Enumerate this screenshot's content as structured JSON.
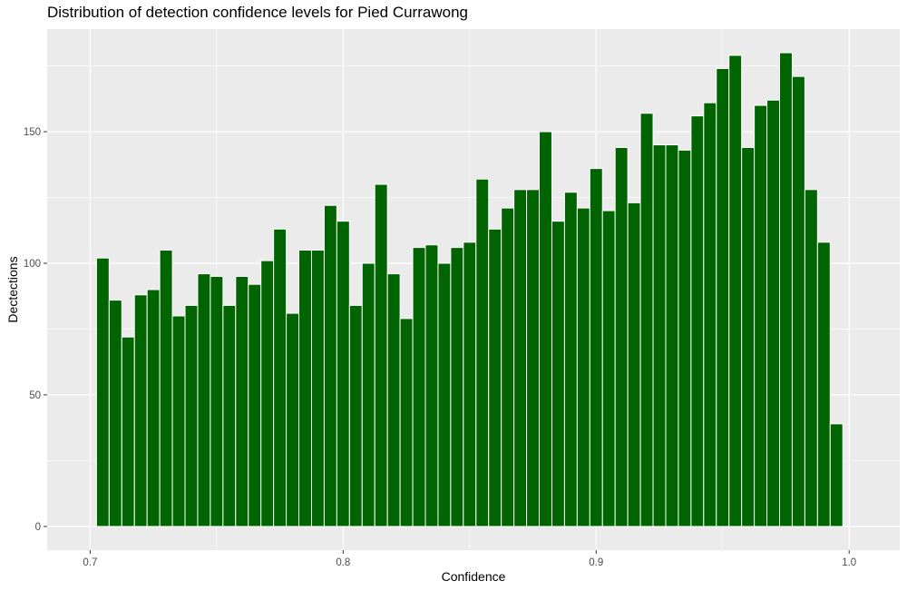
{
  "chart_data": {
    "type": "bar",
    "title": "Distribution of detection confidence levels for Pied Currawong",
    "xlabel": "Confidence",
    "ylabel": "Dectections",
    "xlim": [
      0.683,
      1.02
    ],
    "ylim": [
      -9,
      189
    ],
    "x_ticks": [
      0.7,
      0.8,
      0.9,
      1.0
    ],
    "x_tick_labels": [
      "0.7",
      "0.8",
      "0.9",
      "1.0"
    ],
    "y_ticks": [
      0,
      50,
      100,
      150
    ],
    "y_tick_labels": [
      "0",
      "50",
      "100",
      "150"
    ],
    "bin_width": 0.005,
    "x": [
      0.705,
      0.71,
      0.715,
      0.72,
      0.725,
      0.73,
      0.735,
      0.74,
      0.745,
      0.75,
      0.755,
      0.76,
      0.765,
      0.77,
      0.775,
      0.78,
      0.785,
      0.79,
      0.795,
      0.8,
      0.805,
      0.81,
      0.815,
      0.82,
      0.825,
      0.83,
      0.835,
      0.84,
      0.845,
      0.85,
      0.855,
      0.86,
      0.865,
      0.87,
      0.875,
      0.88,
      0.885,
      0.89,
      0.895,
      0.9,
      0.905,
      0.91,
      0.915,
      0.92,
      0.925,
      0.93,
      0.935,
      0.94,
      0.945,
      0.95,
      0.955,
      0.96,
      0.965,
      0.97,
      0.975,
      0.98,
      0.985,
      0.99,
      0.995
    ],
    "values": [
      102,
      86,
      72,
      88,
      90,
      105,
      80,
      84,
      96,
      95,
      84,
      95,
      92,
      101,
      113,
      81,
      105,
      105,
      122,
      116,
      84,
      100,
      130,
      96,
      79,
      106,
      107,
      100,
      106,
      108,
      132,
      113,
      121,
      128,
      128,
      150,
      116,
      127,
      121,
      136,
      120,
      144,
      123,
      157,
      145,
      145,
      143,
      156,
      161,
      174,
      179,
      144,
      160,
      162,
      180,
      171,
      128,
      108,
      39
    ],
    "colors": {
      "bar": "#006400",
      "bar_outline": "#ffffff",
      "panel": "#ebebeb",
      "grid": "#ffffff"
    },
    "grid": true,
    "legend": "none"
  }
}
